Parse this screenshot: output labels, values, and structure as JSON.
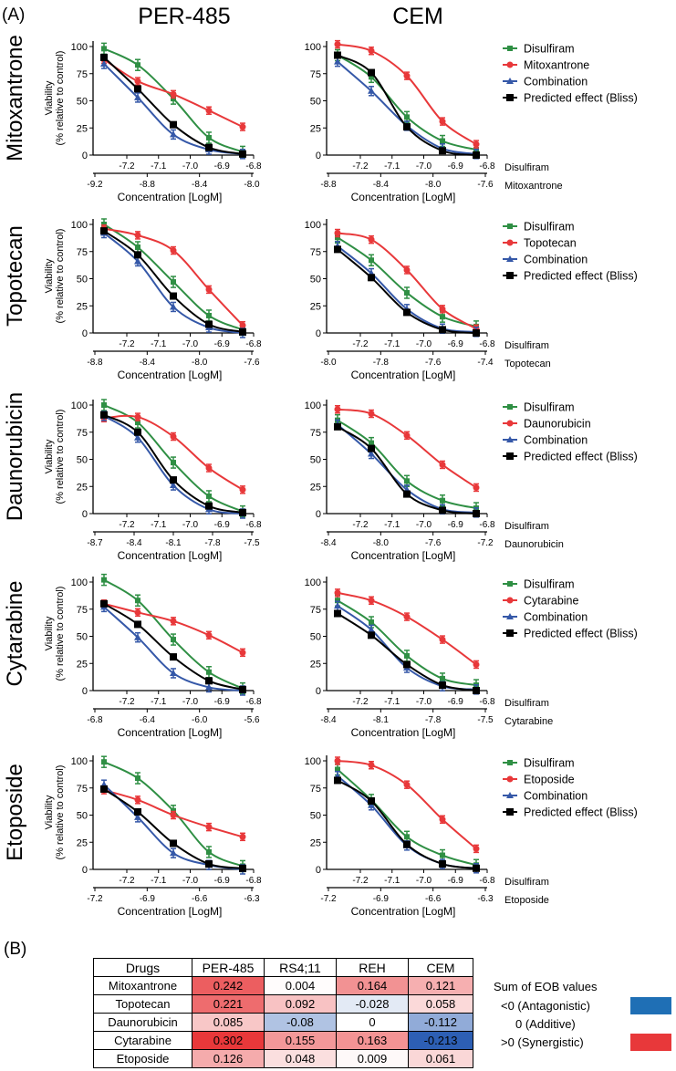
{
  "panel_a_label": "(A)",
  "panel_b_label": "(B)",
  "columns": [
    "PER-485",
    "CEM"
  ],
  "colors": {
    "disulfiram": "#2f8f44",
    "drug": "#e8383a",
    "combination": "#3558a8",
    "bliss": "#000000"
  },
  "chart_data": [
    {
      "type": "line",
      "row_title": "Mitoxantrone",
      "column": "PER-485",
      "ylabel_line1": "Viability",
      "ylabel_line2": "(% relative to control)",
      "yticks": [
        0,
        25,
        50,
        75,
        100
      ],
      "xlabel": "Concentration [LogM]",
      "axis1_name": "",
      "axis1_ticks": [
        "-7.2",
        "-7.1",
        "-7.0",
        "-6.9",
        "-6.8"
      ],
      "axis2_name": "",
      "axis2_ticks": [
        "-9.2",
        "-8.8",
        "-8.4",
        "-8.0"
      ],
      "series": [
        {
          "name": "Disulfiram",
          "values": [
            98,
            83,
            52,
            16,
            3
          ]
        },
        {
          "name": "Mitoxantrone",
          "values": [
            88,
            68,
            56,
            41,
            26
          ]
        },
        {
          "name": "Combination",
          "values": [
            84,
            53,
            19,
            5,
            1
          ]
        },
        {
          "name": "Predicted effect (Bliss)",
          "values": [
            90,
            61,
            28,
            7,
            1
          ]
        }
      ],
      "legend": []
    },
    {
      "type": "line",
      "row_title": "Mitoxantrone",
      "column": "CEM",
      "ylabel_line1": "",
      "ylabel_line2": "",
      "yticks": [
        0,
        25,
        50,
        75,
        100
      ],
      "xlabel": "Concentration [LogM]",
      "axis1_name": "Disulfiram",
      "axis1_ticks": [
        "-7.2",
        "-7.1",
        "-7.0",
        "-6.9",
        "-6.8"
      ],
      "axis2_name": "Mitoxantrone",
      "axis2_ticks": [
        "-8.8",
        "-8.4",
        "-8.0",
        "-7.6"
      ],
      "series": [
        {
          "name": "Disulfiram",
          "values": [
            92,
            72,
            35,
            13,
            5
          ]
        },
        {
          "name": "Mitoxantrone",
          "values": [
            102,
            96,
            73,
            31,
            10
          ]
        },
        {
          "name": "Combination",
          "values": [
            86,
            59,
            27,
            6,
            1
          ]
        },
        {
          "name": "Predicted effect (Bliss)",
          "values": [
            92,
            76,
            26,
            4,
            0
          ]
        }
      ],
      "legend": [
        "Disulfiram",
        "Mitoxantrone",
        "Combination",
        "Predicted effect (Bliss)"
      ]
    },
    {
      "type": "line",
      "row_title": "Topotecan",
      "column": "PER-485",
      "ylabel_line1": "Viability",
      "ylabel_line2": "(% relative to control)",
      "yticks": [
        0,
        25,
        50,
        75,
        100
      ],
      "xlabel": "Concentration [LogM]",
      "axis1_name": "",
      "axis1_ticks": [
        "-7.2",
        "-7.1",
        "-7.0",
        "-6.9",
        "-6.8"
      ],
      "axis2_name": "",
      "axis2_ticks": [
        "-8.8",
        "-8.4",
        "-8.0",
        "-7.6"
      ],
      "series": [
        {
          "name": "Disulfiram",
          "values": [
            100,
            79,
            47,
            16,
            3
          ]
        },
        {
          "name": "Topotecan",
          "values": [
            96,
            90,
            76,
            40,
            7
          ]
        },
        {
          "name": "Combination",
          "values": [
            92,
            66,
            24,
            5,
            0
          ]
        },
        {
          "name": "Predicted effect (Bliss)",
          "values": [
            94,
            72,
            34,
            8,
            1
          ]
        }
      ],
      "legend": []
    },
    {
      "type": "line",
      "row_title": "Topotecan",
      "column": "CEM",
      "ylabel_line1": "",
      "ylabel_line2": "",
      "yticks": [
        0,
        25,
        50,
        75,
        100
      ],
      "xlabel": "Concentration [LogM]",
      "axis1_name": "Disulfiram",
      "axis1_ticks": [
        "-7.2",
        "-7.1",
        "-7.0",
        "-6.9",
        "-6.8"
      ],
      "axis2_name": "Topotecan",
      "axis2_ticks": [
        "-8.0",
        "-7.8",
        "-7.6",
        "-7.4"
      ],
      "series": [
        {
          "name": "Disulfiram",
          "values": [
            88,
            67,
            37,
            15,
            6
          ]
        },
        {
          "name": "Topotecan",
          "values": [
            92,
            86,
            58,
            22,
            4
          ]
        },
        {
          "name": "Combination",
          "values": [
            80,
            55,
            22,
            4,
            1
          ]
        },
        {
          "name": "Predicted effect (Bliss)",
          "values": [
            77,
            51,
            19,
            3,
            0
          ]
        }
      ],
      "legend": [
        "Disulfiram",
        "Topotecan",
        "Combination",
        "Predicted effect (Bliss)"
      ]
    },
    {
      "type": "line",
      "row_title": "Daunorubicin",
      "column": "PER-485",
      "ylabel_line1": "Viability",
      "ylabel_line2": "(% relative to control)",
      "yticks": [
        0,
        25,
        50,
        75,
        100
      ],
      "xlabel": "Concentration [LogM]",
      "axis1_name": "",
      "axis1_ticks": [
        "-7.2",
        "-7.1",
        "-7.0",
        "-6.9",
        "-6.8"
      ],
      "axis2_name": "",
      "axis2_ticks": [
        "-8.7",
        "-8.4",
        "-8.1",
        "-7.8",
        "-7.5"
      ],
      "series": [
        {
          "name": "Disulfiram",
          "values": [
            100,
            84,
            47,
            16,
            2
          ]
        },
        {
          "name": "Daunorubicin",
          "values": [
            88,
            89,
            71,
            42,
            22
          ]
        },
        {
          "name": "Combination",
          "values": [
            90,
            70,
            26,
            4,
            0
          ]
        },
        {
          "name": "Predicted effect (Bliss)",
          "values": [
            91,
            75,
            31,
            7,
            1
          ]
        }
      ],
      "legend": []
    },
    {
      "type": "line",
      "row_title": "Daunorubicin",
      "column": "CEM",
      "ylabel_line1": "",
      "ylabel_line2": "",
      "yticks": [
        0,
        25,
        50,
        75,
        100
      ],
      "xlabel": "Concentration [LogM]",
      "axis1_name": "Disulfiram",
      "axis1_ticks": [
        "-7.2",
        "-7.1",
        "-7.0",
        "-6.9",
        "-6.8"
      ],
      "axis2_name": "Daunorubicin",
      "axis2_ticks": [
        "-8.4",
        "-8.0",
        "-7.6",
        "-7.2"
      ],
      "series": [
        {
          "name": "Disulfiram",
          "values": [
            86,
            65,
            30,
            12,
            5
          ]
        },
        {
          "name": "Daunorubicin",
          "values": [
            96,
            92,
            72,
            45,
            24
          ]
        },
        {
          "name": "Combination",
          "values": [
            82,
            55,
            22,
            4,
            1
          ]
        },
        {
          "name": "Predicted effect (Bliss)",
          "values": [
            80,
            60,
            18,
            3,
            0
          ]
        }
      ],
      "legend": [
        "Disulfiram",
        "Daunorubicin",
        "Combination",
        "Predicted effect (Bliss)"
      ]
    },
    {
      "type": "line",
      "row_title": "Cytarabine",
      "column": "PER-485",
      "ylabel_line1": "Viability",
      "ylabel_line2": "(% relative to control)",
      "yticks": [
        0,
        25,
        50,
        75,
        100
      ],
      "xlabel": "Concentration [LogM]",
      "axis1_name": "",
      "axis1_ticks": [
        "-7.2",
        "-7.1",
        "-7.0",
        "-6.9",
        "-6.8"
      ],
      "axis2_name": "",
      "axis2_ticks": [
        "-6.8",
        "-6.4",
        "-6.0",
        "-5.6"
      ],
      "series": [
        {
          "name": "Disulfiram",
          "values": [
            102,
            83,
            47,
            17,
            2
          ]
        },
        {
          "name": "Cytarabine",
          "values": [
            80,
            72,
            64,
            51,
            35
          ]
        },
        {
          "name": "Combination",
          "values": [
            77,
            49,
            16,
            3,
            0
          ]
        },
        {
          "name": "Predicted effect (Bliss)",
          "values": [
            80,
            61,
            31,
            9,
            1
          ]
        }
      ],
      "legend": []
    },
    {
      "type": "line",
      "row_title": "Cytarabine",
      "column": "CEM",
      "ylabel_line1": "",
      "ylabel_line2": "",
      "yticks": [
        0,
        25,
        50,
        75,
        100
      ],
      "xlabel": "Concentration [LogM]",
      "axis1_name": "Disulfiram",
      "axis1_ticks": [
        "-7.2",
        "-7.1",
        "-7.0",
        "-6.9",
        "-6.8"
      ],
      "axis2_name": "Cytarabine",
      "axis2_ticks": [
        "-8.4",
        "-8.1",
        "-7.8",
        "-7.5"
      ],
      "series": [
        {
          "name": "Disulfiram",
          "values": [
            83,
            63,
            32,
            11,
            5
          ]
        },
        {
          "name": "Cytarabine",
          "values": [
            90,
            83,
            68,
            47,
            24
          ]
        },
        {
          "name": "Combination",
          "values": [
            78,
            56,
            21,
            4,
            1
          ]
        },
        {
          "name": "Predicted effect (Bliss)",
          "values": [
            71,
            51,
            24,
            5,
            0
          ]
        }
      ],
      "legend": [
        "Disulfiram",
        "Cytarabine",
        "Combination",
        "Predicted effect (Bliss)"
      ]
    },
    {
      "type": "line",
      "row_title": "Etoposide",
      "column": "PER-485",
      "ylabel_line1": "Viability",
      "ylabel_line2": "(% relative to control)",
      "yticks": [
        0,
        25,
        50,
        75,
        100
      ],
      "xlabel": "Concentration [LogM]",
      "axis1_name": "",
      "axis1_ticks": [
        "-7.2",
        "-7.1",
        "-7.0",
        "-6.9",
        "-6.8"
      ],
      "axis2_name": "",
      "axis2_ticks": [
        "-7.2",
        "-6.9",
        "-6.6",
        "-6.3"
      ],
      "series": [
        {
          "name": "Disulfiram",
          "values": [
            99,
            84,
            54,
            16,
            3
          ]
        },
        {
          "name": "Etoposide",
          "values": [
            73,
            64,
            50,
            39,
            30
          ]
        },
        {
          "name": "Combination",
          "values": [
            78,
            48,
            15,
            4,
            0
          ]
        },
        {
          "name": "Predicted effect (Bliss)",
          "values": [
            74,
            53,
            24,
            5,
            1
          ]
        }
      ],
      "legend": []
    },
    {
      "type": "line",
      "row_title": "Etoposide",
      "column": "CEM",
      "ylabel_line1": "",
      "ylabel_line2": "",
      "yticks": [
        0,
        25,
        50,
        75,
        100
      ],
      "xlabel": "Concentration [LogM]",
      "axis1_name": "Disulfiram",
      "axis1_ticks": [
        "-7.2",
        "-7.1",
        "-7.0",
        "-6.9",
        "-6.8"
      ],
      "axis2_name": "Etoposide",
      "axis2_ticks": [
        "-7.2",
        "-6.9",
        "-6.6",
        "-6.3"
      ],
      "series": [
        {
          "name": "Disulfiram",
          "values": [
            92,
            64,
            30,
            13,
            4
          ]
        },
        {
          "name": "Etoposide",
          "values": [
            100,
            96,
            78,
            46,
            19
          ]
        },
        {
          "name": "Combination",
          "values": [
            86,
            59,
            22,
            5,
            1
          ]
        },
        {
          "name": "Predicted effect (Bliss)",
          "values": [
            82,
            63,
            23,
            5,
            1
          ]
        }
      ],
      "legend": [
        "Disulfiram",
        "Etoposide",
        "Combination",
        "Predicted effect (Bliss)"
      ]
    }
  ],
  "table": {
    "headers": [
      "Drugs",
      "PER-485",
      "RS4;11",
      "REH",
      "CEM"
    ],
    "rows": [
      {
        "drug": "Mitoxantrone",
        "values": [
          "0.242",
          "0.004",
          "0.164",
          "0.121"
        ]
      },
      {
        "drug": "Topotecan",
        "values": [
          "0.221",
          "0.092",
          "-0.028",
          "0.058"
        ]
      },
      {
        "drug": "Daunorubicin",
        "values": [
          "0.085",
          "-0.08",
          "0",
          "-0.112"
        ]
      },
      {
        "drug": "Cytarabine",
        "values": [
          "0.302",
          "0.155",
          "0.163",
          "-0.213"
        ]
      },
      {
        "drug": "Etoposide",
        "values": [
          "0.126",
          "0.048",
          "0.009",
          "0.061"
        ]
      }
    ]
  },
  "table_legend": {
    "title": "Sum of EOB values",
    "antagonistic": "<0 (Antagonistic)",
    "additive": "0 (Additive)",
    "synergistic": ">0 (Synergistic)",
    "antagonistic_color": "#1f6fb5",
    "synergistic_color": "#e8383a"
  }
}
